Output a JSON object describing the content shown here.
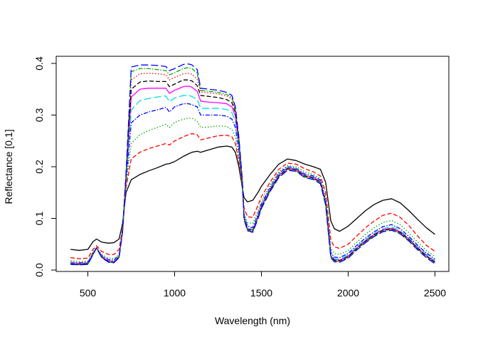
{
  "chart_data": {
    "type": "line",
    "title": "",
    "xlabel": "Wavelength (nm)",
    "ylabel": "Reflectance [0,1]",
    "xlim": [
      400,
      2500
    ],
    "ylim": [
      0,
      0.4
    ],
    "xticks": [
      500,
      1000,
      1500,
      2000,
      2500
    ],
    "yticks": [
      0.0,
      0.1,
      0.2,
      0.3,
      0.4
    ],
    "xtick_labels": [
      "500",
      "1000",
      "1500",
      "2000",
      "2500"
    ],
    "ytick_labels": [
      "0.0",
      "0.1",
      "0.2",
      "0.3",
      "0.4"
    ],
    "grid": false,
    "legend": "none",
    "x": [
      400,
      450,
      500,
      530,
      550,
      580,
      620,
      650,
      680,
      700,
      720,
      750,
      800,
      850,
      900,
      950,
      970,
      1000,
      1050,
      1080,
      1100,
      1130,
      1150,
      1200,
      1250,
      1300,
      1330,
      1350,
      1370,
      1390,
      1400,
      1420,
      1450,
      1480,
      1500,
      1550,
      1600,
      1650,
      1700,
      1750,
      1800,
      1840,
      1870,
      1890,
      1900,
      1920,
      1950,
      2000,
      2050,
      2100,
      2150,
      2200,
      2250,
      2300,
      2350,
      2400,
      2450,
      2500
    ],
    "series": [
      {
        "color": "#000000",
        "dash": "solid",
        "values": [
          0.04,
          0.038,
          0.04,
          0.055,
          0.06,
          0.054,
          0.052,
          0.053,
          0.06,
          0.09,
          0.15,
          0.175,
          0.185,
          0.192,
          0.198,
          0.205,
          0.206,
          0.21,
          0.22,
          0.225,
          0.228,
          0.23,
          0.228,
          0.233,
          0.238,
          0.24,
          0.238,
          0.228,
          0.2,
          0.16,
          0.14,
          0.132,
          0.135,
          0.15,
          0.162,
          0.185,
          0.205,
          0.215,
          0.212,
          0.205,
          0.2,
          0.195,
          0.17,
          0.12,
          0.095,
          0.08,
          0.075,
          0.085,
          0.1,
          0.115,
          0.127,
          0.135,
          0.138,
          0.13,
          0.115,
          0.098,
          0.082,
          0.069
        ]
      },
      {
        "color": "#ff0000",
        "dash": "6,3",
        "values": [
          0.024,
          0.022,
          0.023,
          0.04,
          0.047,
          0.036,
          0.03,
          0.03,
          0.04,
          0.08,
          0.16,
          0.215,
          0.228,
          0.235,
          0.24,
          0.245,
          0.242,
          0.25,
          0.258,
          0.262,
          0.264,
          0.262,
          0.252,
          0.256,
          0.26,
          0.261,
          0.258,
          0.245,
          0.21,
          0.16,
          0.12,
          0.103,
          0.102,
          0.125,
          0.142,
          0.17,
          0.195,
          0.207,
          0.205,
          0.196,
          0.19,
          0.182,
          0.15,
          0.09,
          0.058,
          0.045,
          0.042,
          0.05,
          0.066,
          0.082,
          0.095,
          0.106,
          0.11,
          0.102,
          0.086,
          0.066,
          0.048,
          0.036
        ]
      },
      {
        "color": "#00aa00",
        "dash": "1.5,2.5",
        "values": [
          0.018,
          0.016,
          0.017,
          0.035,
          0.044,
          0.03,
          0.023,
          0.022,
          0.03,
          0.075,
          0.165,
          0.245,
          0.262,
          0.27,
          0.276,
          0.282,
          0.276,
          0.286,
          0.292,
          0.294,
          0.294,
          0.288,
          0.276,
          0.277,
          0.279,
          0.278,
          0.272,
          0.258,
          0.22,
          0.16,
          0.11,
          0.092,
          0.09,
          0.115,
          0.134,
          0.165,
          0.19,
          0.202,
          0.2,
          0.19,
          0.185,
          0.177,
          0.14,
          0.075,
          0.042,
          0.032,
          0.03,
          0.038,
          0.054,
          0.069,
          0.082,
          0.092,
          0.096,
          0.088,
          0.072,
          0.054,
          0.038,
          0.026
        ]
      },
      {
        "color": "#0000ff",
        "dash": "6,2,1.5,2",
        "values": [
          0.015,
          0.014,
          0.015,
          0.033,
          0.043,
          0.028,
          0.02,
          0.019,
          0.028,
          0.075,
          0.17,
          0.285,
          0.3,
          0.306,
          0.31,
          0.315,
          0.306,
          0.316,
          0.322,
          0.322,
          0.32,
          0.316,
          0.3,
          0.3,
          0.3,
          0.298,
          0.292,
          0.276,
          0.232,
          0.165,
          0.106,
          0.085,
          0.082,
          0.108,
          0.128,
          0.16,
          0.187,
          0.2,
          0.197,
          0.186,
          0.182,
          0.174,
          0.135,
          0.068,
          0.034,
          0.025,
          0.024,
          0.032,
          0.048,
          0.062,
          0.074,
          0.084,
          0.088,
          0.08,
          0.065,
          0.048,
          0.033,
          0.021
        ]
      },
      {
        "color": "#00dddd",
        "dash": "10,4",
        "values": [
          0.014,
          0.013,
          0.014,
          0.032,
          0.043,
          0.027,
          0.018,
          0.017,
          0.027,
          0.075,
          0.175,
          0.31,
          0.328,
          0.332,
          0.335,
          0.337,
          0.326,
          0.333,
          0.338,
          0.338,
          0.336,
          0.33,
          0.313,
          0.313,
          0.313,
          0.311,
          0.305,
          0.288,
          0.24,
          0.168,
          0.104,
          0.082,
          0.079,
          0.105,
          0.125,
          0.158,
          0.185,
          0.198,
          0.196,
          0.184,
          0.18,
          0.172,
          0.132,
          0.064,
          0.03,
          0.022,
          0.021,
          0.029,
          0.045,
          0.059,
          0.071,
          0.08,
          0.084,
          0.076,
          0.062,
          0.045,
          0.03,
          0.018
        ]
      },
      {
        "color": "#ff00ff",
        "dash": "solid",
        "values": [
          0.013,
          0.012,
          0.013,
          0.031,
          0.043,
          0.026,
          0.017,
          0.016,
          0.026,
          0.075,
          0.18,
          0.335,
          0.35,
          0.352,
          0.352,
          0.352,
          0.342,
          0.348,
          0.355,
          0.356,
          0.354,
          0.346,
          0.327,
          0.325,
          0.324,
          0.322,
          0.316,
          0.298,
          0.246,
          0.17,
          0.102,
          0.08,
          0.077,
          0.103,
          0.123,
          0.156,
          0.183,
          0.197,
          0.195,
          0.183,
          0.179,
          0.171,
          0.13,
          0.062,
          0.028,
          0.02,
          0.019,
          0.027,
          0.043,
          0.057,
          0.069,
          0.078,
          0.081,
          0.074,
          0.06,
          0.043,
          0.028,
          0.016
        ]
      },
      {
        "color": "#000000",
        "dash": "6,3",
        "values": [
          0.012,
          0.011,
          0.012,
          0.031,
          0.043,
          0.025,
          0.016,
          0.015,
          0.025,
          0.075,
          0.183,
          0.35,
          0.364,
          0.366,
          0.365,
          0.365,
          0.355,
          0.36,
          0.368,
          0.368,
          0.366,
          0.357,
          0.338,
          0.336,
          0.334,
          0.33,
          0.324,
          0.305,
          0.25,
          0.172,
          0.101,
          0.079,
          0.076,
          0.102,
          0.122,
          0.155,
          0.182,
          0.196,
          0.194,
          0.182,
          0.178,
          0.17,
          0.129,
          0.061,
          0.027,
          0.019,
          0.018,
          0.026,
          0.042,
          0.056,
          0.068,
          0.077,
          0.08,
          0.073,
          0.059,
          0.042,
          0.027,
          0.015
        ]
      },
      {
        "color": "#ff0000",
        "dash": "1.5,2.5",
        "values": [
          0.012,
          0.011,
          0.012,
          0.03,
          0.043,
          0.025,
          0.016,
          0.015,
          0.025,
          0.075,
          0.185,
          0.368,
          0.38,
          0.381,
          0.38,
          0.378,
          0.368,
          0.373,
          0.38,
          0.381,
          0.379,
          0.37,
          0.345,
          0.343,
          0.341,
          0.337,
          0.331,
          0.31,
          0.254,
          0.173,
          0.1,
          0.078,
          0.075,
          0.101,
          0.121,
          0.154,
          0.181,
          0.195,
          0.193,
          0.181,
          0.177,
          0.169,
          0.128,
          0.06,
          0.026,
          0.018,
          0.017,
          0.025,
          0.041,
          0.055,
          0.067,
          0.076,
          0.079,
          0.072,
          0.058,
          0.041,
          0.026,
          0.014
        ]
      },
      {
        "color": "#00aa00",
        "dash": "6,2,1.5,2",
        "values": [
          0.011,
          0.01,
          0.011,
          0.03,
          0.043,
          0.024,
          0.015,
          0.014,
          0.024,
          0.075,
          0.186,
          0.384,
          0.39,
          0.39,
          0.388,
          0.386,
          0.378,
          0.382,
          0.39,
          0.392,
          0.39,
          0.381,
          0.348,
          0.346,
          0.344,
          0.34,
          0.334,
          0.313,
          0.256,
          0.174,
          0.099,
          0.077,
          0.074,
          0.1,
          0.12,
          0.153,
          0.18,
          0.194,
          0.192,
          0.18,
          0.176,
          0.168,
          0.127,
          0.059,
          0.025,
          0.017,
          0.016,
          0.024,
          0.04,
          0.054,
          0.066,
          0.075,
          0.078,
          0.071,
          0.057,
          0.04,
          0.025,
          0.013
        ]
      },
      {
        "color": "#0000ff",
        "dash": "10,4",
        "values": [
          0.011,
          0.01,
          0.011,
          0.03,
          0.043,
          0.024,
          0.015,
          0.014,
          0.024,
          0.075,
          0.187,
          0.393,
          0.397,
          0.397,
          0.396,
          0.394,
          0.386,
          0.39,
          0.398,
          0.399,
          0.397,
          0.388,
          0.352,
          0.35,
          0.348,
          0.344,
          0.338,
          0.316,
          0.258,
          0.175,
          0.098,
          0.076,
          0.073,
          0.099,
          0.119,
          0.152,
          0.179,
          0.193,
          0.191,
          0.179,
          0.175,
          0.167,
          0.126,
          0.058,
          0.024,
          0.016,
          0.015,
          0.023,
          0.039,
          0.053,
          0.065,
          0.074,
          0.077,
          0.07,
          0.056,
          0.039,
          0.024,
          0.012
        ]
      }
    ]
  }
}
